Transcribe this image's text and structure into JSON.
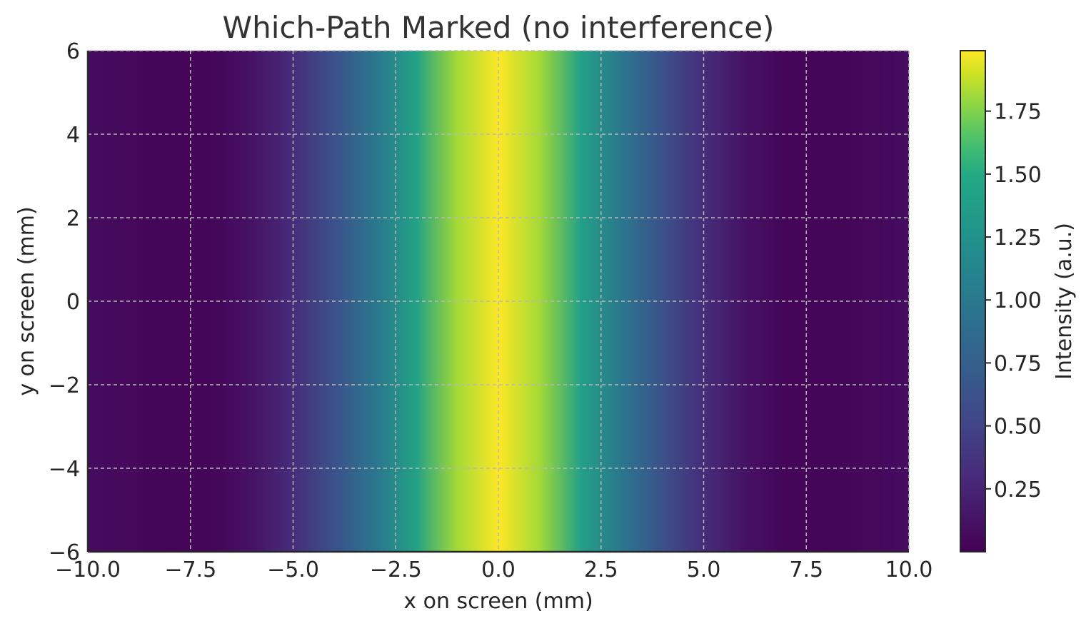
{
  "chart_data": {
    "type": "heatmap",
    "title": "Which-Path Marked (no interference)",
    "xlabel": "x on screen (mm)",
    "ylabel": "y on screen (mm)",
    "xlim": [
      -10.0,
      10.0
    ],
    "ylim": [
      -6,
      6
    ],
    "xticks": [
      -10.0,
      -7.5,
      -5.0,
      -2.5,
      0.0,
      2.5,
      5.0,
      7.5,
      10.0
    ],
    "xtick_labels": [
      "−10.0",
      "−7.5",
      "−5.0",
      "−2.5",
      "0.0",
      "2.5",
      "5.0",
      "7.5",
      "10.0"
    ],
    "yticks": [
      -6,
      -4,
      -2,
      0,
      2,
      4,
      6
    ],
    "ytick_labels": [
      "−6",
      "−4",
      "−2",
      "0",
      "2",
      "4",
      "6"
    ],
    "grid": true,
    "colormap": "viridis",
    "intensity_profile": {
      "x": [
        -10,
        -9,
        -8,
        -7,
        -6,
        -5,
        -4,
        -3,
        -2,
        -1,
        0,
        1,
        2,
        3,
        4,
        5,
        6,
        7,
        8,
        9,
        10
      ],
      "values": [
        0.08,
        0.05,
        0.02,
        0.03,
        0.12,
        0.32,
        0.62,
        0.98,
        1.42,
        1.82,
        1.99,
        1.82,
        1.42,
        0.98,
        0.62,
        0.32,
        0.12,
        0.03,
        0.02,
        0.05,
        0.08
      ]
    },
    "colorbar": {
      "label": "Intensity (a.u.)",
      "range": [
        0.0,
        1.99
      ],
      "ticks": [
        0.25,
        0.5,
        0.75,
        1.0,
        1.25,
        1.5,
        1.75
      ],
      "tick_labels": [
        "0.25",
        "0.50",
        "0.75",
        "1.00",
        "1.25",
        "1.50",
        "1.75"
      ]
    }
  }
}
